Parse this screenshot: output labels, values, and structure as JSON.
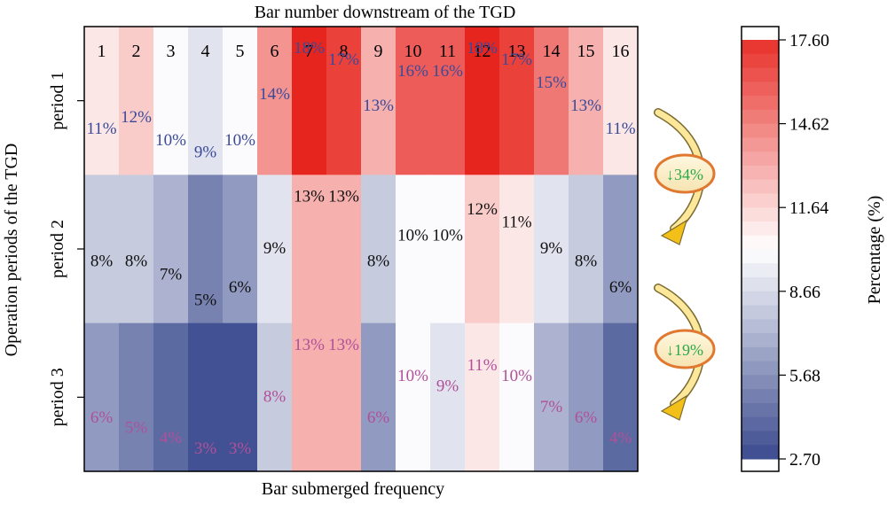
{
  "chart_data": {
    "type": "heatmap",
    "title": "Bar number downstream of the TGD",
    "xlabel": "Bar submerged frequency",
    "ylabel": "Operation periods of the TGD",
    "x_categories": [
      "1",
      "2",
      "3",
      "4",
      "5",
      "6",
      "7",
      "8",
      "9",
      "10",
      "11",
      "12",
      "13",
      "14",
      "15",
      "16"
    ],
    "y_categories": [
      "period 1",
      "period 2",
      "period 3"
    ],
    "values": [
      [
        11,
        12,
        10,
        9,
        10,
        14,
        18,
        17,
        13,
        16,
        16,
        18,
        17,
        15,
        13,
        11
      ],
      [
        8,
        8,
        7,
        5,
        6,
        9,
        13,
        13,
        8,
        10,
        10,
        12,
        11,
        9,
        8,
        6
      ],
      [
        6,
        5,
        4,
        3,
        3,
        8,
        13,
        13,
        6,
        10,
        9,
        11,
        10,
        7,
        6,
        4
      ]
    ],
    "value_suffix": "%",
    "text_colors": {
      "period 1": "#3a4a9a",
      "period 2": "#111111",
      "period 3": "#b0509a"
    },
    "colorbar": {
      "label": "Percentage (%)",
      "range": [
        2.7,
        17.6
      ],
      "ticks": [
        "17.60",
        "14.62",
        "11.64",
        "8.66",
        "5.68",
        "2.70"
      ],
      "low_color": "#3a4a8e",
      "mid_color": "#ffffff",
      "high_color": "#e8302a"
    },
    "annotations": [
      {
        "text": "↓34%",
        "color": "#2aa84a",
        "between": [
          "period 1",
          "period 2"
        ]
      },
      {
        "text": "↓19%",
        "color": "#2aa84a",
        "between": [
          "period 2",
          "period 3"
        ]
      }
    ]
  }
}
